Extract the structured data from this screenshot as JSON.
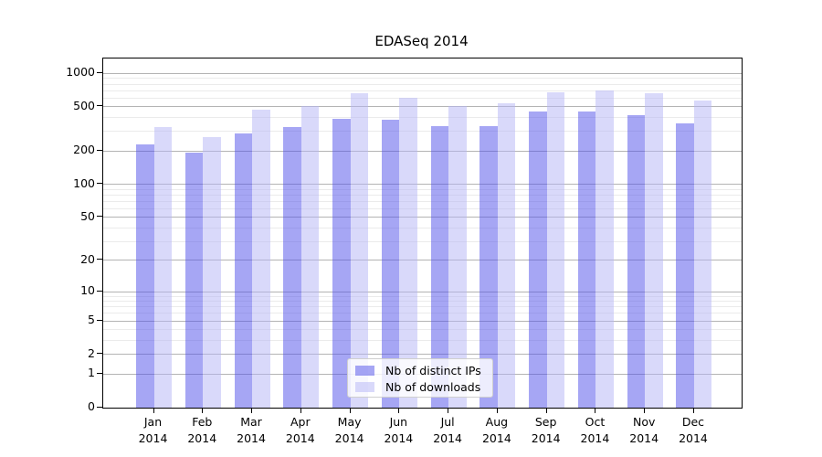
{
  "chart_data": {
    "type": "bar",
    "title": "EDASeq 2014",
    "categories": [
      "Jan",
      "Feb",
      "Mar",
      "Apr",
      "May",
      "Jun",
      "Jul",
      "Aug",
      "Sep",
      "Oct",
      "Nov",
      "Dec"
    ],
    "x_year": "2014",
    "series": [
      {
        "name": "Nb of distinct IPs",
        "color": "rgba(77,77,233,0.5)",
        "flat_color": "#a6a6f4",
        "values": [
          226,
          191,
          288,
          323,
          389,
          377,
          332,
          332,
          446,
          452,
          419,
          353
        ]
      },
      {
        "name": "Nb of downloads",
        "color": "rgba(179,179,245,0.5)",
        "flat_color": "#d9d9fa",
        "values": [
          327,
          266,
          470,
          507,
          653,
          592,
          500,
          532,
          673,
          693,
          655,
          569
        ]
      }
    ],
    "y_axis": {
      "scale": "log1p",
      "ticks": [
        0,
        1,
        2,
        5,
        10,
        20,
        50,
        100,
        200,
        500,
        1000
      ],
      "minor_ticks": [
        3,
        4,
        6,
        7,
        8,
        9,
        30,
        40,
        60,
        70,
        80,
        90,
        300,
        400,
        600,
        700,
        800,
        900
      ],
      "range_top": 1400
    },
    "legend": {
      "position": "lower center"
    },
    "grid": true,
    "colors": {
      "grid_major": "#b4b4b4",
      "grid_minor": "#ebebeb",
      "frame": "#000000",
      "text": "#000000",
      "background": "#ffffff"
    }
  }
}
